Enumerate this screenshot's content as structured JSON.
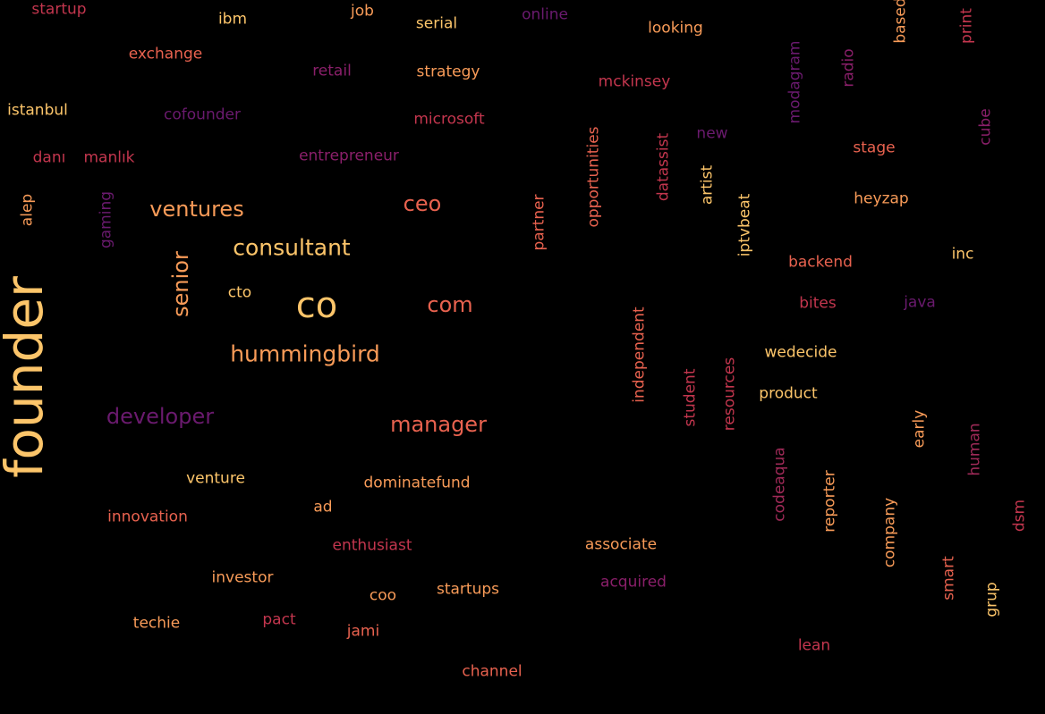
{
  "palette": {
    "background": "#000000",
    "yellow": "#fcc56a",
    "orange": "#f89b58",
    "coral": "#e8624f",
    "red": "#c3364e",
    "crimson": "#a02a58",
    "magenta": "#8a1f6a",
    "purple": "#6a1a6e"
  },
  "words": [
    {
      "text": "founder"
    },
    {
      "text": "co"
    },
    {
      "text": "hummingbird"
    },
    {
      "text": "consultant"
    },
    {
      "text": "ventures"
    },
    {
      "text": "manager"
    },
    {
      "text": "developer"
    },
    {
      "text": "ceo"
    },
    {
      "text": "com"
    },
    {
      "text": "senior"
    },
    {
      "text": "cto"
    },
    {
      "text": "venture"
    },
    {
      "text": "innovation"
    },
    {
      "text": "ad"
    },
    {
      "text": "dominatefund"
    },
    {
      "text": "enthusiast"
    },
    {
      "text": "investor"
    },
    {
      "text": "coo"
    },
    {
      "text": "startups"
    },
    {
      "text": "techie"
    },
    {
      "text": "pact"
    },
    {
      "text": "jami"
    },
    {
      "text": "channel"
    },
    {
      "text": "associate"
    },
    {
      "text": "acquired"
    },
    {
      "text": "lean"
    },
    {
      "text": "startup"
    },
    {
      "text": "ibm"
    },
    {
      "text": "job"
    },
    {
      "text": "serial"
    },
    {
      "text": "online"
    },
    {
      "text": "looking"
    },
    {
      "text": "exchange"
    },
    {
      "text": "retail"
    },
    {
      "text": "strategy"
    },
    {
      "text": "mckinsey"
    },
    {
      "text": "istanbul"
    },
    {
      "text": "cofounder"
    },
    {
      "text": "microsoft"
    },
    {
      "text": "danı"
    },
    {
      "text": "manlık"
    },
    {
      "text": "entrepreneur"
    },
    {
      "text": "new"
    },
    {
      "text": "stage"
    },
    {
      "text": "heyzap"
    },
    {
      "text": "backend"
    },
    {
      "text": "inc"
    },
    {
      "text": "bites"
    },
    {
      "text": "java"
    },
    {
      "text": "wedecide"
    },
    {
      "text": "product"
    },
    {
      "text": "alep"
    },
    {
      "text": "gaming"
    },
    {
      "text": "partner"
    },
    {
      "text": "opportunities"
    },
    {
      "text": "datassist"
    },
    {
      "text": "artist"
    },
    {
      "text": "iptvbeat"
    },
    {
      "text": "modagram"
    },
    {
      "text": "radio"
    },
    {
      "text": "based"
    },
    {
      "text": "print"
    },
    {
      "text": "cube"
    },
    {
      "text": "independent"
    },
    {
      "text": "student"
    },
    {
      "text": "resources"
    },
    {
      "text": "early"
    },
    {
      "text": "human"
    },
    {
      "text": "codeaqua"
    },
    {
      "text": "reporter"
    },
    {
      "text": "company"
    },
    {
      "text": "dsm"
    },
    {
      "text": "smart"
    },
    {
      "text": "grup"
    }
  ]
}
